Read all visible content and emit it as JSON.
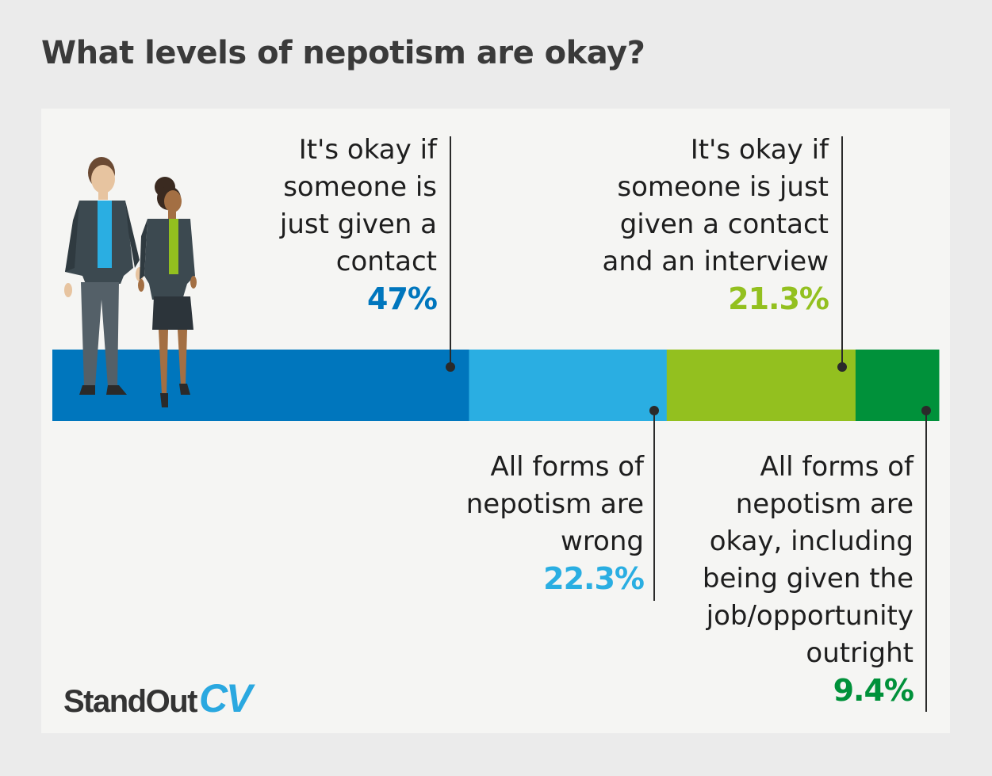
{
  "title": "What levels of nepotism are okay?",
  "chart_data": {
    "type": "bar",
    "orientation": "horizontal-stacked",
    "title": "What levels of nepotism are okay?",
    "unit": "%",
    "categories": [
      "It's okay if someone is just given a contact",
      "All forms of nepotism are wrong",
      "It's okay if someone is just given a contact and an interview",
      "All forms of nepotism are okay, including being given the job/opportunity outright"
    ],
    "values": [
      47,
      22.3,
      21.3,
      9.4
    ],
    "labels": [
      "47%",
      "22.3%",
      "21.3%",
      "9.4%"
    ],
    "colors": [
      "#0076bd",
      "#2aaee2",
      "#93c01f",
      "#00913a"
    ],
    "xlim": [
      0,
      100
    ]
  },
  "callouts": [
    {
      "label": "It's okay if\nsomeone is\njust given a\ncontact",
      "pct": "47%",
      "color": "#0076bd"
    },
    {
      "label": "All forms of\nnepotism are\nwrong",
      "pct": "22.3%",
      "color": "#2aaee2"
    },
    {
      "label": "It's okay if\nsomeone is just\ngiven a contact\nand an interview",
      "pct": "21.3%",
      "color": "#93c01f"
    },
    {
      "label": "All forms of\nnepotism are\nokay, including\nbeing given the\njob/opportunity\noutright",
      "pct": "9.4%",
      "color": "#00913a"
    }
  ],
  "brand": {
    "part1": "StandOut",
    "part2": "CV"
  }
}
